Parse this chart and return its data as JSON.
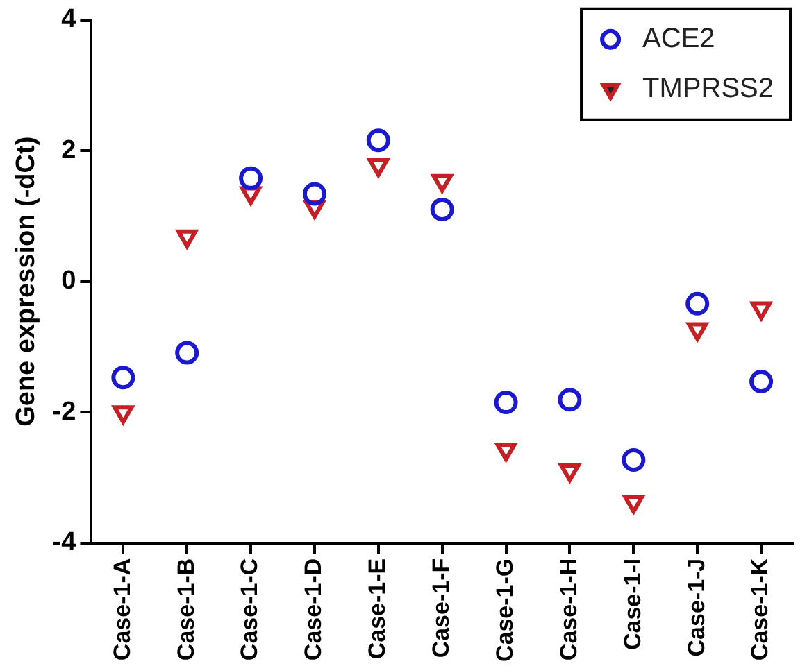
{
  "chart_data": {
    "type": "scatter",
    "ylabel": "Gene expression (-dCt)",
    "categories": [
      "Case-1-A",
      "Case-1-B",
      "Case-1-C",
      "Case-1-D",
      "Case-1-E",
      "Case-1-F",
      "Case-1-G",
      "Case-1-H",
      "Case-1-I",
      "Case-1-J",
      "Case-1-K"
    ],
    "series": [
      {
        "name": "ACE2",
        "color": "#1a1acc",
        "marker": "circle",
        "values": [
          -1.47,
          -1.09,
          1.58,
          1.34,
          2.16,
          1.1,
          -1.85,
          -1.81,
          -2.73,
          -0.34,
          -1.53
        ]
      },
      {
        "name": "TMPRSS2",
        "color": "#c42026",
        "marker": "triangle",
        "values": [
          -2.0,
          0.69,
          1.35,
          1.14,
          1.78,
          1.54,
          -2.57,
          -2.89,
          -3.37,
          -0.73,
          -0.41
        ]
      }
    ],
    "ylim": [
      -4,
      4
    ],
    "yticks": [
      -4,
      -2,
      0,
      2,
      4
    ],
    "grid": false,
    "legend": "top right"
  }
}
